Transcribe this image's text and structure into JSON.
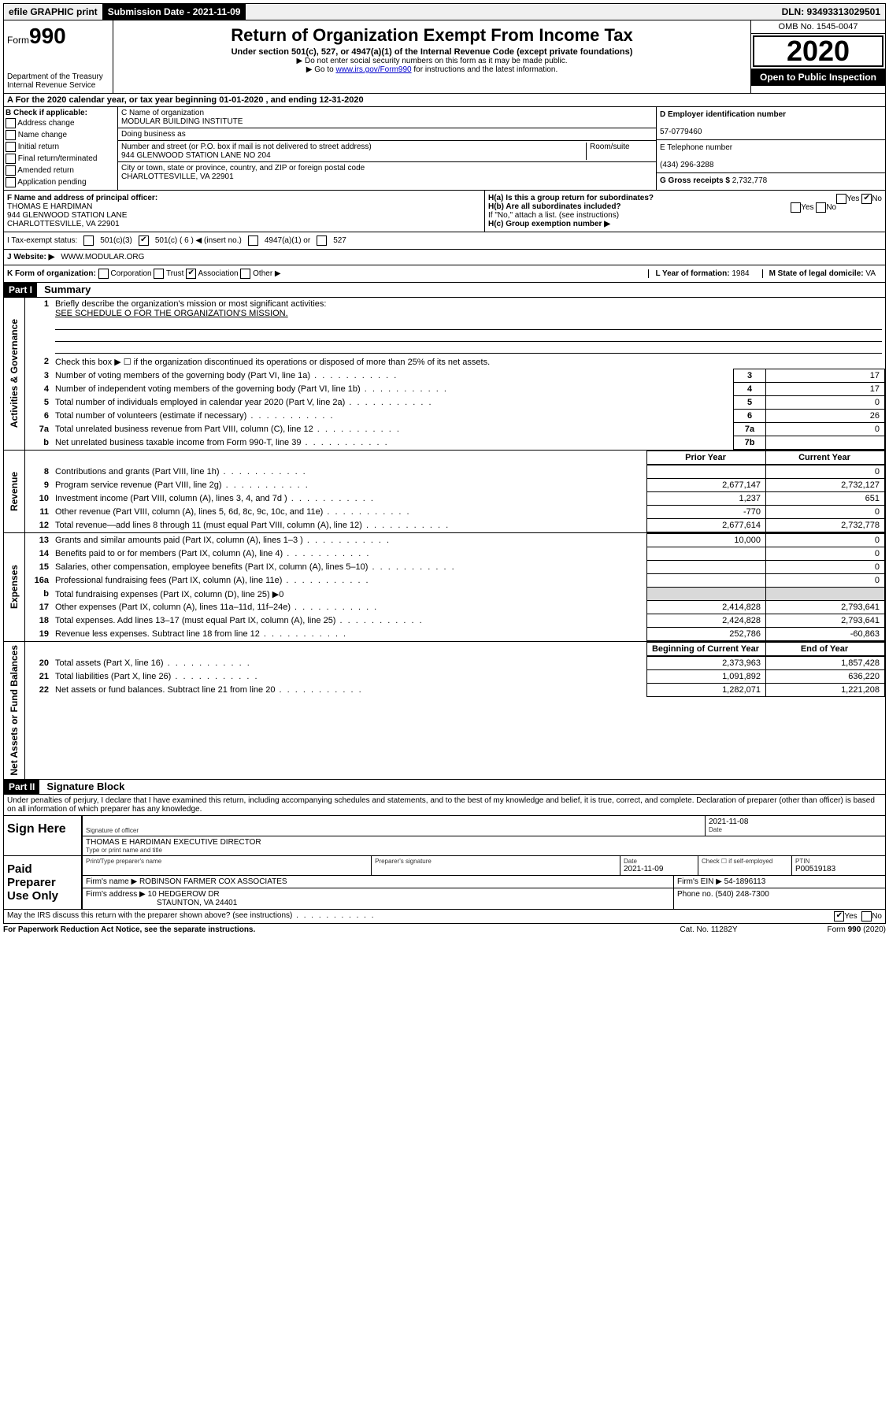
{
  "topbar": {
    "efile": "efile GRAPHIC print",
    "subdate_label": "Submission Date - 2021-11-09",
    "dln": "DLN: 93493313029501"
  },
  "header": {
    "form_prefix": "Form",
    "form_number": "990",
    "dept": "Department of the Treasury\nInternal Revenue Service",
    "title": "Return of Organization Exempt From Income Tax",
    "subtitle": "Under section 501(c), 527, or 4947(a)(1) of the Internal Revenue Code (except private foundations)",
    "note1": "▶ Do not enter social security numbers on this form as it may be made public.",
    "note2_pre": "▶ Go to ",
    "note2_link": "www.irs.gov/Form990",
    "note2_post": " for instructions and the latest information.",
    "omb": "OMB No. 1545-0047",
    "year": "2020",
    "inspection": "Open to Public Inspection"
  },
  "line_a": "A For the 2020 calendar year, or tax year beginning 01-01-2020    , and ending 12-31-2020",
  "col_b": {
    "label": "B Check if applicable:",
    "opts": [
      "Address change",
      "Name change",
      "Initial return",
      "Final return/terminated",
      "Amended return",
      "Application pending"
    ]
  },
  "col_c": {
    "name_label": "C Name of organization",
    "name": "MODULAR BUILDING INSTITUTE",
    "dba_label": "Doing business as",
    "street_label": "Number and street (or P.O. box if mail is not delivered to street address)",
    "room_label": "Room/suite",
    "street": "944 GLENWOOD STATION LANE NO 204",
    "city_label": "City or town, state or province, country, and ZIP or foreign postal code",
    "city": "CHARLOTTESVILLE, VA  22901"
  },
  "col_d": {
    "label": "D Employer identification number",
    "value": "57-0779460"
  },
  "col_e": {
    "label": "E Telephone number",
    "value": "(434) 296-3288"
  },
  "col_g": {
    "label": "G Gross receipts $",
    "value": "2,732,778"
  },
  "col_f": {
    "label": "F  Name and address of principal officer:",
    "name": "THOMAS E HARDIMAN",
    "addr1": "944 GLENWOOD STATION LANE",
    "addr2": "CHARLOTTESVILLE, VA  22901"
  },
  "col_h": {
    "ha": "H(a)  Is this a group return for subordinates?",
    "hb": "H(b)  Are all subordinates included?",
    "hb_note": "If \"No,\" attach a list. (see instructions)",
    "hc": "H(c)  Group exemption number ▶"
  },
  "status": {
    "label": "I   Tax-exempt status:",
    "c3": "501(c)(3)",
    "c_v": "501(c) ( 6 ) ◀ (insert no.)",
    "a1": "4947(a)(1) or",
    "s527": "527"
  },
  "website": {
    "label": "J   Website: ▶",
    "value": "WWW.MODULAR.ORG"
  },
  "line_k": {
    "k": "K Form of organization:",
    "opts": [
      "Corporation",
      "Trust",
      "Association",
      "Other ▶"
    ],
    "checked": 2,
    "l_label": "L Year of formation:",
    "l_val": "1984",
    "m_label": "M State of legal domicile:",
    "m_val": "VA"
  },
  "part1": {
    "tag": "Part I",
    "title": "Summary",
    "q1": "Briefly describe the organization's mission or most significant activities:",
    "q1_val": "SEE SCHEDULE O FOR THE ORGANIZATION'S MISSION.",
    "q2": "Check this box ▶ ☐  if the organization discontinued its operations or disposed of more than 25% of its net assets.",
    "governance_label": "Activities & Governance",
    "revenue_label": "Revenue",
    "expenses_label": "Expenses",
    "netassets_label": "Net Assets or Fund Balances",
    "rows_gov": [
      {
        "n": "3",
        "t": "Number of voting members of the governing body (Part VI, line 1a)",
        "box": "3",
        "v": "17"
      },
      {
        "n": "4",
        "t": "Number of independent voting members of the governing body (Part VI, line 1b)",
        "box": "4",
        "v": "17"
      },
      {
        "n": "5",
        "t": "Total number of individuals employed in calendar year 2020 (Part V, line 2a)",
        "box": "5",
        "v": "0"
      },
      {
        "n": "6",
        "t": "Total number of volunteers (estimate if necessary)",
        "box": "6",
        "v": "26"
      },
      {
        "n": "7a",
        "t": "Total unrelated business revenue from Part VIII, column (C), line 12",
        "box": "7a",
        "v": "0"
      },
      {
        "n": "b",
        "t": "Net unrelated business taxable income from Form 990-T, line 39",
        "box": "7b",
        "v": ""
      }
    ],
    "prior_label": "Prior Year",
    "current_label": "Current Year",
    "rows_rev": [
      {
        "n": "8",
        "t": "Contributions and grants (Part VIII, line 1h)",
        "p": "",
        "c": "0"
      },
      {
        "n": "9",
        "t": "Program service revenue (Part VIII, line 2g)",
        "p": "2,677,147",
        "c": "2,732,127"
      },
      {
        "n": "10",
        "t": "Investment income (Part VIII, column (A), lines 3, 4, and 7d )",
        "p": "1,237",
        "c": "651"
      },
      {
        "n": "11",
        "t": "Other revenue (Part VIII, column (A), lines 5, 6d, 8c, 9c, 10c, and 11e)",
        "p": "-770",
        "c": "0"
      },
      {
        "n": "12",
        "t": "Total revenue—add lines 8 through 11 (must equal Part VIII, column (A), line 12)",
        "p": "2,677,614",
        "c": "2,732,778"
      }
    ],
    "rows_exp": [
      {
        "n": "13",
        "t": "Grants and similar amounts paid (Part IX, column (A), lines 1–3 )",
        "p": "10,000",
        "c": "0"
      },
      {
        "n": "14",
        "t": "Benefits paid to or for members (Part IX, column (A), line 4)",
        "p": "",
        "c": "0"
      },
      {
        "n": "15",
        "t": "Salaries, other compensation, employee benefits (Part IX, column (A), lines 5–10)",
        "p": "",
        "c": "0"
      },
      {
        "n": "16a",
        "t": "Professional fundraising fees (Part IX, column (A), line 11e)",
        "p": "",
        "c": "0"
      },
      {
        "n": "b",
        "t": "Total fundraising expenses (Part IX, column (D), line 25) ▶0",
        "p": null,
        "c": null
      },
      {
        "n": "17",
        "t": "Other expenses (Part IX, column (A), lines 11a–11d, 11f–24e)",
        "p": "2,414,828",
        "c": "2,793,641"
      },
      {
        "n": "18",
        "t": "Total expenses. Add lines 13–17 (must equal Part IX, column (A), line 25)",
        "p": "2,424,828",
        "c": "2,793,641"
      },
      {
        "n": "19",
        "t": "Revenue less expenses. Subtract line 18 from line 12",
        "p": "252,786",
        "c": "-60,863"
      }
    ],
    "begin_label": "Beginning of Current Year",
    "end_label": "End of Year",
    "rows_net": [
      {
        "n": "20",
        "t": "Total assets (Part X, line 16)",
        "p": "2,373,963",
        "c": "1,857,428"
      },
      {
        "n": "21",
        "t": "Total liabilities (Part X, line 26)",
        "p": "1,091,892",
        "c": "636,220"
      },
      {
        "n": "22",
        "t": "Net assets or fund balances. Subtract line 21 from line 20",
        "p": "1,282,071",
        "c": "1,221,208"
      }
    ]
  },
  "part2": {
    "tag": "Part II",
    "title": "Signature Block",
    "declare": "Under penalties of perjury, I declare that I have examined this return, including accompanying schedules and statements, and to the best of my knowledge and belief, it is true, correct, and complete. Declaration of preparer (other than officer) is based on all information of which preparer has any knowledge."
  },
  "sign": {
    "here": "Sign Here",
    "sig_label": "Signature of officer",
    "date_label": "Date",
    "date_val": "2021-11-08",
    "name": "THOMAS E HARDIMAN  EXECUTIVE DIRECTOR",
    "name_label": "Type or print name and title"
  },
  "paid": {
    "label": "Paid Preparer Use Only",
    "print_label": "Print/Type preparer's name",
    "sig_label": "Preparer's signature",
    "date_label": "Date",
    "date_val": "2021-11-09",
    "check_label": "Check ☐ if self-employed",
    "ptin_label": "PTIN",
    "ptin_val": "P00519183",
    "firm_name_label": "Firm's name     ▶",
    "firm_name": "ROBINSON FARMER COX ASSOCIATES",
    "firm_ein_label": "Firm's EIN ▶",
    "firm_ein": "54-1896113",
    "firm_addr_label": "Firm's address ▶",
    "firm_addr1": "10 HEDGEROW DR",
    "firm_addr2": "STAUNTON, VA  24401",
    "phone_label": "Phone no.",
    "phone": "(540) 248-7300"
  },
  "discuss": "May the IRS discuss this return with the preparer shown above? (see instructions)",
  "footer": {
    "left": "For Paperwork Reduction Act Notice, see the separate instructions.",
    "mid": "Cat. No. 11282Y",
    "right": "Form 990 (2020)"
  }
}
